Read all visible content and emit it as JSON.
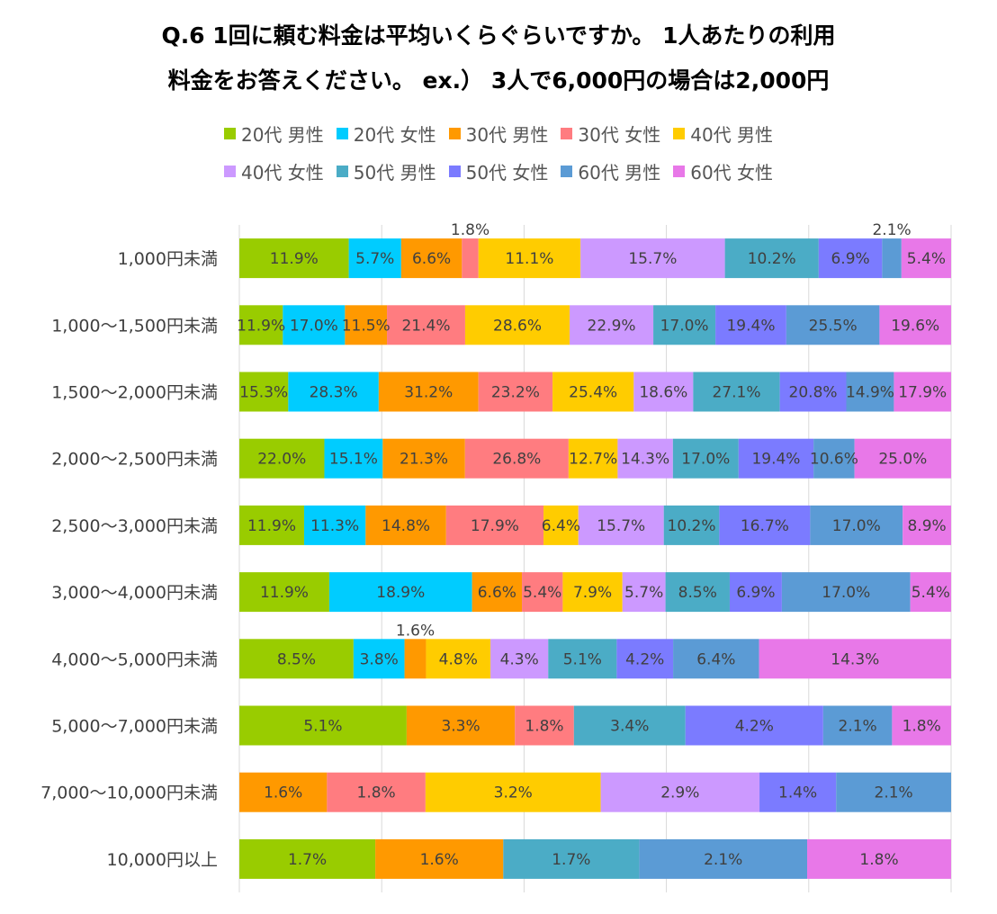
{
  "chart_data": {
    "type": "bar",
    "orientation": "horizontal",
    "stacked": "percent",
    "title_lines": [
      "Q.6 1回に頼む料金は平均いくらぐらいですか。 1人あたりの利用",
      "料金をお答えください。 ex.） 3人で6,000円の場合は2,000円"
    ],
    "legend_position": "top",
    "grid": true,
    "categories": [
      "1,000円未満",
      "1,000〜1,500円未満",
      "1,500〜2,000円未満",
      "2,000〜2,500円未満",
      "2,500〜3,000円未満",
      "3,000〜4,000円未満",
      "4,000〜5,000円未満",
      "5,000〜7,000円未満",
      "7,000〜10,000円未満",
      "10,000円以上"
    ],
    "series": [
      {
        "name": "20代 男性",
        "color": "#99CC00",
        "values": [
          11.9,
          11.9,
          15.3,
          22.0,
          11.9,
          11.9,
          8.5,
          5.1,
          0,
          1.7
        ]
      },
      {
        "name": "20代 女性",
        "color": "#00CCFF",
        "values": [
          5.7,
          17.0,
          28.3,
          15.1,
          11.3,
          18.9,
          3.8,
          0,
          0,
          0
        ]
      },
      {
        "name": "30代 男性",
        "color": "#FF9900",
        "values": [
          6.6,
          11.5,
          31.2,
          21.3,
          14.8,
          6.6,
          1.6,
          3.3,
          1.6,
          1.6
        ]
      },
      {
        "name": "30代 女性",
        "color": "#FF7C80",
        "values": [
          1.8,
          21.4,
          23.2,
          26.8,
          17.9,
          5.4,
          0,
          1.8,
          1.8,
          0
        ]
      },
      {
        "name": "40代 男性",
        "color": "#FFCC00",
        "values": [
          11.1,
          28.6,
          25.4,
          12.7,
          6.4,
          7.9,
          4.8,
          0,
          3.2,
          0
        ]
      },
      {
        "name": "40代 女性",
        "color": "#CC99FF",
        "values": [
          15.7,
          22.9,
          18.6,
          14.3,
          15.7,
          5.7,
          4.3,
          0,
          2.9,
          0
        ]
      },
      {
        "name": "50代 男性",
        "color": "#4BACC6",
        "values": [
          10.2,
          17.0,
          27.1,
          17.0,
          10.2,
          8.5,
          5.1,
          3.4,
          0,
          1.7
        ]
      },
      {
        "name": "50代 女性",
        "color": "#7B7BFF",
        "values": [
          6.9,
          19.4,
          20.8,
          19.4,
          16.7,
          6.9,
          4.2,
          4.2,
          1.4,
          0
        ]
      },
      {
        "name": "60代 男性",
        "color": "#5B9BD5",
        "values": [
          2.1,
          25.5,
          14.9,
          10.6,
          17.0,
          17.0,
          6.4,
          2.1,
          2.1,
          2.1
        ]
      },
      {
        "name": "60代 女性",
        "color": "#E878E8",
        "values": [
          5.4,
          19.6,
          17.9,
          25.0,
          8.9,
          5.4,
          14.3,
          1.8,
          0,
          1.8
        ]
      }
    ],
    "value_suffix": "%"
  }
}
